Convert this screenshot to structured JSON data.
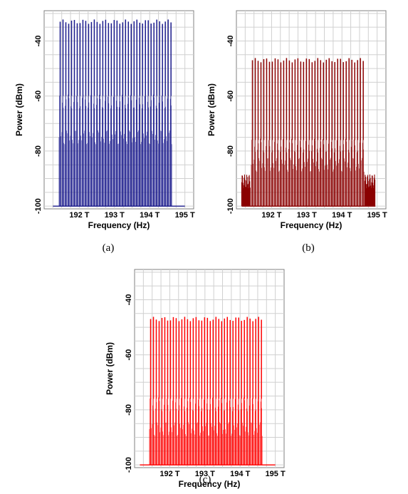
{
  "captions": [
    "(a)",
    "(b)",
    "(c)"
  ],
  "chart_data": [
    {
      "type": "line",
      "panel": "(a)",
      "color": "#1a1a8c",
      "xlabel": "Frequency (Hz)",
      "ylabel": "Power (dBm)",
      "x_ticks": [
        "192 T",
        "193 T",
        "194 T",
        "195 T"
      ],
      "x_tick_values": [
        192,
        193,
        194,
        195
      ],
      "y_ticks": [
        "-40",
        "-60",
        "-80",
        "-100"
      ],
      "y_tick_values": [
        -40,
        -60,
        -80,
        -100
      ],
      "xlim": [
        191.0,
        195.25
      ],
      "ylim": [
        -101,
        -29
      ],
      "grid": true,
      "channels": {
        "count": 40,
        "f_start": 191.45,
        "f_end": 194.6
      },
      "peak_power_dBm": -33,
      "inner_sideband_dBm": -62,
      "outer_sideband_dBm": -75,
      "noise_floor_dBm": -100,
      "floor_span": [
        191.25,
        195.0
      ]
    },
    {
      "type": "line",
      "panel": "(b)",
      "color": "#8b0000",
      "xlabel": "Frequency (Hz)",
      "ylabel": "Power (dBm)",
      "x_ticks": [
        "192 T",
        "193 T",
        "194 T",
        "195 T"
      ],
      "x_tick_values": [
        192,
        193,
        194,
        195
      ],
      "y_ticks": [
        "-40",
        "-60",
        "-80",
        "-100"
      ],
      "y_tick_values": [
        -40,
        -60,
        -80,
        -100
      ],
      "xlim": [
        191.0,
        195.25
      ],
      "ylim": [
        -101,
        -29
      ],
      "grid": true,
      "channels": {
        "count": 40,
        "f_start": 191.45,
        "f_end": 194.6
      },
      "peak_power_dBm": -47,
      "inner_sideband_dBm": -78,
      "outer_sideband_dBm": -85,
      "noise_floor_dBm": -100,
      "edge_noise_dBm": -91,
      "floor_span": [
        191.15,
        194.95
      ]
    },
    {
      "type": "line",
      "panel": "(c)",
      "color": "#ff0000",
      "xlabel": "Frequency (Hz)",
      "ylabel": "Power (dBm)",
      "x_ticks": [
        "192 T",
        "193 T",
        "194 T",
        "195 T"
      ],
      "x_tick_values": [
        192,
        193,
        194,
        195
      ],
      "y_ticks": [
        "-40",
        "-60",
        "-80",
        "-100"
      ],
      "y_tick_values": [
        -40,
        -60,
        -80,
        -100
      ],
      "xlim": [
        191.0,
        195.25
      ],
      "ylim": [
        -101,
        -29
      ],
      "grid": true,
      "channels": {
        "count": 40,
        "f_start": 191.45,
        "f_end": 194.6
      },
      "peak_power_dBm": -47,
      "inner_sideband_dBm": -78,
      "outer_sideband_dBm": -87,
      "noise_floor_dBm": -100,
      "floor_span": [
        191.15,
        195.0
      ]
    }
  ]
}
